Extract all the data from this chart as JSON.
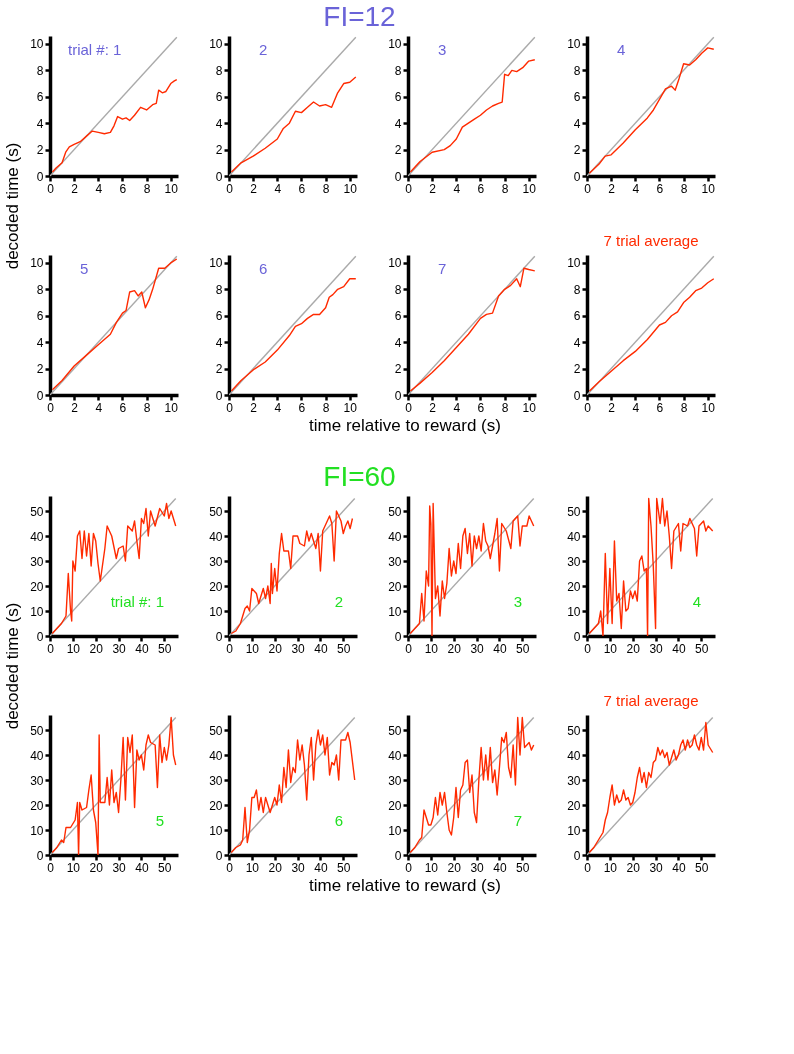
{
  "chart_data": [
    {
      "type": "other",
      "title": "FI=12",
      "xlabel": "time relative to reward (s)",
      "ylabel": "decoded time (s)"
    },
    {
      "type": "line",
      "annotations": [
        "trial #: 1"
      ],
      "xlim": [
        0,
        10.6
      ],
      "ylim": [
        0,
        10.6
      ],
      "xticks": [
        0,
        2,
        4,
        6,
        8,
        10
      ],
      "yticks": [
        0,
        2,
        4,
        6,
        8,
        10
      ],
      "grid": false,
      "series": [
        {
          "color": "#aaaaaa",
          "x": [
            0,
            10.5
          ],
          "values": [
            0,
            10.5
          ]
        },
        {
          "color": "#ff2a00",
          "x": [
            0.2,
            0.5,
            1,
            1.3,
            1.6,
            2,
            2.5,
            3,
            3.5,
            4,
            4.5,
            5,
            5.3,
            5.6,
            6,
            6.3,
            6.6,
            7,
            7.5,
            8,
            8.5,
            8.8,
            9,
            9.3,
            9.6,
            10,
            10.3,
            10.5
          ],
          "values": [
            0.3,
            0.6,
            1.0,
            1.8,
            2.2,
            2.4,
            2.6,
            3.0,
            3.4,
            3.3,
            3.2,
            3.3,
            3.8,
            4.5,
            4.3,
            4.4,
            4.2,
            4.6,
            5.2,
            5.0,
            5.4,
            5.5,
            6.5,
            6.3,
            6.4,
            7.0,
            7.2,
            7.3
          ]
        }
      ]
    },
    {
      "type": "line",
      "annotations": [
        "2"
      ],
      "xlim": [
        0,
        10.6
      ],
      "ylim": [
        0,
        10.6
      ],
      "xticks": [
        0,
        2,
        4,
        6,
        8,
        10
      ],
      "yticks": [
        0,
        2,
        4,
        6,
        8,
        10
      ],
      "grid": false,
      "series": [
        {
          "color": "#aaaaaa",
          "x": [
            0,
            10.5
          ],
          "values": [
            0,
            10.5
          ]
        },
        {
          "color": "#ff2a00",
          "x": [
            0.2,
            1,
            2,
            3,
            4,
            4.5,
            5,
            5.5,
            6,
            6.5,
            7,
            7.5,
            8,
            8.5,
            9,
            9.5,
            10,
            10.5
          ],
          "values": [
            0.3,
            1.0,
            1.5,
            2.1,
            2.8,
            3.6,
            4.0,
            4.9,
            4.8,
            5.2,
            5.6,
            5.3,
            5.4,
            5.2,
            6.3,
            7.0,
            7.1,
            7.5
          ]
        }
      ]
    },
    {
      "type": "line",
      "annotations": [
        "3"
      ],
      "xlim": [
        0,
        10.6
      ],
      "ylim": [
        0,
        10.6
      ],
      "xticks": [
        0,
        2,
        4,
        6,
        8,
        10
      ],
      "yticks": [
        0,
        2,
        4,
        6,
        8,
        10
      ],
      "grid": false,
      "series": [
        {
          "color": "#aaaaaa",
          "x": [
            0,
            10.5
          ],
          "values": [
            0,
            10.5
          ]
        },
        {
          "color": "#ff2a00",
          "x": [
            0.2,
            1,
            2,
            3,
            3.5,
            4,
            4.5,
            5,
            5.5,
            6,
            6.5,
            7,
            7.5,
            7.8,
            8,
            8.3,
            8.6,
            9,
            9.5,
            10,
            10.5
          ],
          "values": [
            0.3,
            1.1,
            1.8,
            2.0,
            2.3,
            2.8,
            3.7,
            4.0,
            4.3,
            4.6,
            5.0,
            5.3,
            5.5,
            5.6,
            7.7,
            7.6,
            8.0,
            7.9,
            8.2,
            8.7,
            8.8
          ]
        }
      ]
    },
    {
      "type": "line",
      "annotations": [
        "4"
      ],
      "xlim": [
        0,
        10.6
      ],
      "ylim": [
        0,
        10.6
      ],
      "xticks": [
        0,
        2,
        4,
        6,
        8,
        10
      ],
      "yticks": [
        0,
        2,
        4,
        6,
        8,
        10
      ],
      "grid": false,
      "series": [
        {
          "color": "#aaaaaa",
          "x": [
            0,
            10.5
          ],
          "values": [
            0,
            10.5
          ]
        },
        {
          "color": "#ff2a00",
          "x": [
            0.2,
            1,
            1.5,
            2,
            3,
            4,
            5,
            5.5,
            6,
            6.5,
            7,
            7.3,
            7.6,
            8,
            8.5,
            9,
            9.5,
            10,
            10.5
          ],
          "values": [
            0.2,
            0.9,
            1.5,
            1.6,
            2.5,
            3.5,
            4.4,
            5.0,
            5.8,
            6.6,
            6.8,
            6.5,
            7.3,
            8.5,
            8.4,
            8.8,
            9.3,
            9.7,
            9.6
          ]
        }
      ]
    },
    {
      "type": "line",
      "annotations": [
        "5"
      ],
      "xlim": [
        0,
        10.6
      ],
      "ylim": [
        0,
        10.6
      ],
      "xticks": [
        0,
        2,
        4,
        6,
        8,
        10
      ],
      "yticks": [
        0,
        2,
        4,
        6,
        8,
        10
      ],
      "grid": false,
      "series": [
        {
          "color": "#aaaaaa",
          "x": [
            0,
            10.5
          ],
          "values": [
            0,
            10.5
          ]
        },
        {
          "color": "#ff2a00",
          "x": [
            0.2,
            1,
            2,
            3,
            4,
            5,
            5.5,
            6,
            6.3,
            6.6,
            7,
            7.3,
            7.6,
            7.9,
            8.2,
            8.5,
            9,
            9.5,
            10,
            10.5
          ],
          "values": [
            0.4,
            1.1,
            2.2,
            3.0,
            3.8,
            4.6,
            5.5,
            6.2,
            6.4,
            7.8,
            7.9,
            7.5,
            7.8,
            6.6,
            7.2,
            8.0,
            9.6,
            9.6,
            10.0,
            10.3
          ]
        }
      ]
    },
    {
      "type": "line",
      "annotations": [
        "6"
      ],
      "xlim": [
        0,
        10.6
      ],
      "ylim": [
        0,
        10.6
      ],
      "xticks": [
        0,
        2,
        4,
        6,
        8,
        10
      ],
      "yticks": [
        0,
        2,
        4,
        6,
        8,
        10
      ],
      "grid": false,
      "series": [
        {
          "color": "#aaaaaa",
          "x": [
            0,
            10.5
          ],
          "values": [
            0,
            10.5
          ]
        },
        {
          "color": "#ff2a00",
          "x": [
            0.2,
            1,
            2,
            3,
            4,
            5,
            5.5,
            6,
            6.5,
            7,
            7.5,
            8,
            8.3,
            8.6,
            9,
            9.5,
            10,
            10.5
          ],
          "values": [
            0.3,
            1.1,
            1.9,
            2.5,
            3.4,
            4.5,
            5.2,
            5.4,
            5.8,
            6.1,
            6.1,
            6.6,
            7.4,
            7.6,
            8.0,
            8.2,
            8.8,
            8.8
          ]
        }
      ]
    },
    {
      "type": "line",
      "annotations": [
        "7"
      ],
      "xlim": [
        0,
        10.6
      ],
      "ylim": [
        0,
        10.6
      ],
      "xticks": [
        0,
        2,
        4,
        6,
        8,
        10
      ],
      "yticks": [
        0,
        2,
        4,
        6,
        8,
        10
      ],
      "grid": false,
      "series": [
        {
          "color": "#aaaaaa",
          "x": [
            0,
            10.5
          ],
          "values": [
            0,
            10.5
          ]
        },
        {
          "color": "#ff2a00",
          "x": [
            0.2,
            1,
            2,
            3,
            4,
            5,
            6,
            6.5,
            7,
            7.5,
            8,
            8.5,
            9,
            9.3,
            9.6,
            10,
            10.5
          ],
          "values": [
            0.3,
            0.9,
            1.7,
            2.6,
            3.6,
            4.6,
            5.8,
            6.1,
            6.2,
            7.5,
            8.0,
            8.3,
            8.8,
            8.2,
            9.6,
            9.5,
            9.4
          ]
        }
      ]
    },
    {
      "type": "line",
      "annotations": [
        "7 trial average"
      ],
      "xlim": [
        0,
        10.6
      ],
      "ylim": [
        0,
        10.6
      ],
      "xticks": [
        0,
        2,
        4,
        6,
        8,
        10
      ],
      "yticks": [
        0,
        2,
        4,
        6,
        8,
        10
      ],
      "grid": false,
      "series": [
        {
          "color": "#aaaaaa",
          "x": [
            0,
            10.5
          ],
          "values": [
            0,
            10.5
          ]
        },
        {
          "color": "#ff2a00",
          "x": [
            0.2,
            1,
            2,
            3,
            4,
            5,
            6,
            6.5,
            7,
            7.5,
            8,
            8.5,
            9,
            9.5,
            10,
            10.5
          ],
          "values": [
            0.3,
            1.0,
            1.8,
            2.6,
            3.3,
            4.2,
            5.3,
            5.5,
            6.0,
            6.3,
            7.0,
            7.4,
            7.9,
            8.1,
            8.5,
            8.8
          ]
        }
      ]
    },
    {
      "type": "other",
      "title": "FI=60",
      "xlabel": "time relative to reward (s)",
      "ylabel": "decoded time (s)"
    },
    {
      "type": "line",
      "annotations": [
        "trial #: 1"
      ],
      "xlim": [
        0,
        56
      ],
      "ylim": [
        0,
        56
      ],
      "xticks": [
        0,
        10,
        20,
        30,
        40,
        50
      ],
      "yticks": [
        0,
        10,
        20,
        30,
        40,
        50
      ],
      "grid": false,
      "series": [
        {
          "color": "#aaaaaa",
          "x": [
            0,
            55
          ],
          "values": [
            0,
            55
          ]
        },
        {
          "color": "#ff2a00",
          "x": [
            1,
            3,
            5,
            7,
            8,
            9,
            9.5,
            10,
            11,
            12,
            13,
            14,
            15,
            16,
            17,
            18,
            19,
            20,
            21,
            22,
            24,
            25,
            27,
            29,
            30,
            32,
            33,
            34,
            36,
            37,
            38,
            39,
            40,
            41,
            42,
            43,
            44,
            46,
            48,
            50,
            51,
            52,
            53,
            54,
            55
          ],
          "values": [
            1,
            3,
            5,
            8,
            25,
            10,
            6,
            30,
            26,
            40,
            42,
            31,
            42,
            32,
            41,
            28,
            41,
            38,
            29,
            22,
            35,
            44,
            40,
            31,
            35,
            36,
            30,
            44,
            42,
            46,
            38,
            31,
            47,
            45,
            51,
            40,
            50,
            44,
            51,
            48,
            53,
            47,
            50,
            47,
            44
          ]
        }
      ]
    },
    {
      "type": "line",
      "annotations": [
        "2"
      ],
      "xlim": [
        0,
        56
      ],
      "ylim": [
        0,
        56
      ],
      "xticks": [
        0,
        10,
        20,
        30,
        40,
        50
      ],
      "yticks": [
        0,
        10,
        20,
        30,
        40,
        50
      ],
      "grid": false,
      "series": [
        {
          "color": "#aaaaaa",
          "x": [
            0,
            55
          ],
          "values": [
            0,
            55
          ]
        },
        {
          "color": "#ff2a00",
          "x": [
            1,
            3,
            5,
            7,
            8,
            9,
            10,
            12,
            13,
            15,
            16,
            17,
            18,
            18.5,
            19,
            20,
            21,
            22,
            23,
            24,
            26,
            27,
            28,
            30,
            31,
            33,
            34,
            35,
            36,
            38,
            39,
            40,
            41,
            42,
            44,
            45,
            46,
            47,
            48,
            49,
            50,
            51,
            52,
            53,
            54
          ],
          "values": [
            1,
            2,
            5,
            11,
            12,
            10,
            19,
            17,
            13,
            19,
            15,
            20,
            13,
            29,
            17,
            27,
            18,
            33,
            41,
            34,
            34,
            27,
            40,
            40,
            37,
            36,
            42,
            38,
            41,
            35,
            41,
            26,
            42,
            44,
            48,
            45,
            30,
            50,
            48,
            46,
            41,
            44,
            46,
            43,
            47
          ]
        }
      ]
    },
    {
      "type": "line",
      "annotations": [
        "3"
      ],
      "xlim": [
        0,
        56
      ],
      "ylim": [
        0,
        56
      ],
      "xticks": [
        0,
        10,
        20,
        30,
        40,
        50
      ],
      "yticks": [
        0,
        10,
        20,
        30,
        40,
        50
      ],
      "grid": false,
      "series": [
        {
          "color": "#aaaaaa",
          "x": [
            0,
            55
          ],
          "values": [
            0,
            55
          ]
        },
        {
          "color": "#ff2a00",
          "x": [
            1,
            3,
            5,
            6,
            7,
            8,
            9,
            9.5,
            10,
            10.5,
            11,
            12,
            13,
            14,
            15,
            16,
            17,
            18,
            19,
            20,
            21,
            22,
            23,
            24,
            25,
            26,
            27,
            28,
            29,
            30,
            31,
            32,
            33,
            34,
            35,
            36,
            37,
            38,
            39,
            40,
            41,
            43,
            45,
            46,
            48,
            49,
            50,
            52,
            53,
            55
          ],
          "values": [
            1,
            3,
            5,
            17,
            6,
            26,
            20,
            52,
            45,
            0,
            53,
            15,
            20,
            8,
            22,
            15,
            21,
            35,
            24,
            30,
            25,
            37,
            27,
            40,
            43,
            33,
            41,
            28,
            40,
            35,
            40,
            34,
            45,
            38,
            36,
            31,
            36,
            41,
            47,
            26,
            45,
            42,
            35,
            46,
            48,
            36,
            44,
            44,
            48,
            44
          ]
        }
      ]
    },
    {
      "type": "line",
      "annotations": [
        "4"
      ],
      "xlim": [
        0,
        56
      ],
      "ylim": [
        0,
        56
      ],
      "xticks": [
        0,
        10,
        20,
        30,
        40,
        50
      ],
      "yticks": [
        0,
        10,
        20,
        30,
        40,
        50
      ],
      "grid": false,
      "series": [
        {
          "color": "#aaaaaa",
          "x": [
            0,
            55
          ],
          "values": [
            0,
            55
          ]
        },
        {
          "color": "#ff2a00",
          "x": [
            1,
            3,
            5,
            6,
            7,
            8,
            9,
            10,
            11,
            12,
            13,
            14,
            15,
            16,
            17,
            18,
            19,
            20,
            21,
            22,
            23,
            24,
            25,
            26,
            26.5,
            27,
            28,
            29,
            30,
            30.5,
            32,
            33,
            34,
            35,
            36,
            37,
            38,
            40,
            41,
            42,
            44,
            45,
            47,
            48,
            49,
            51,
            52,
            53,
            55
          ],
          "values": [
            1,
            3,
            5,
            10,
            0,
            33,
            5,
            27,
            5,
            38,
            14,
            17,
            3,
            22,
            10,
            11,
            18,
            15,
            18,
            14,
            30,
            32,
            26,
            27,
            0,
            55,
            44,
            28,
            3,
            55,
            45,
            55,
            44,
            50,
            40,
            27,
            42,
            45,
            34,
            45,
            44,
            47,
            43,
            32,
            44,
            46,
            42,
            44,
            42
          ]
        }
      ]
    },
    {
      "type": "line",
      "annotations": [
        "5"
      ],
      "xlim": [
        0,
        56
      ],
      "ylim": [
        0,
        56
      ],
      "xticks": [
        0,
        10,
        20,
        30,
        40,
        50
      ],
      "yticks": [
        0,
        10,
        20,
        30,
        40,
        50
      ],
      "grid": false,
      "series": [
        {
          "color": "#aaaaaa",
          "x": [
            0,
            55
          ],
          "values": [
            0,
            55
          ]
        },
        {
          "color": "#ff2a00",
          "x": [
            1,
            3,
            5,
            6,
            7,
            9,
            11,
            12,
            12.5,
            13,
            14,
            16,
            17,
            18,
            19,
            20,
            21,
            21.5,
            22,
            24,
            25,
            26,
            27,
            28,
            29,
            30,
            31,
            32,
            33,
            34,
            35,
            36,
            37,
            38,
            39,
            40,
            41,
            42,
            43,
            44,
            46,
            47,
            48,
            49,
            50,
            51,
            52,
            53,
            54,
            55
          ],
          "values": [
            1,
            3,
            6,
            5,
            11,
            11,
            14,
            21,
            0,
            21,
            18,
            19,
            26,
            32,
            18,
            13,
            0,
            48,
            21,
            21,
            31,
            20,
            34,
            21,
            25,
            17,
            30,
            47,
            22,
            47,
            41,
            48,
            19,
            42,
            38,
            40,
            34,
            44,
            48,
            45,
            44,
            27,
            48,
            37,
            43,
            38,
            44,
            55,
            40,
            36
          ]
        }
      ]
    },
    {
      "type": "line",
      "annotations": [
        "6"
      ],
      "xlim": [
        0,
        56
      ],
      "ylim": [
        0,
        56
      ],
      "xticks": [
        0,
        10,
        20,
        30,
        40,
        50
      ],
      "yticks": [
        0,
        10,
        20,
        30,
        40,
        50
      ],
      "grid": false,
      "series": [
        {
          "color": "#aaaaaa",
          "x": [
            0,
            55
          ],
          "values": [
            0,
            55
          ]
        },
        {
          "color": "#ff2a00",
          "x": [
            1,
            3,
            5,
            6,
            7,
            8,
            9,
            10,
            11,
            12,
            13,
            14,
            15,
            16,
            17,
            18,
            20,
            21,
            22,
            23,
            24,
            25,
            26,
            27,
            28,
            29,
            30,
            31,
            32,
            33,
            34,
            35,
            36,
            37,
            38,
            39,
            40,
            41,
            42,
            43,
            44,
            45,
            46,
            47,
            48,
            49,
            51,
            52,
            53,
            55
          ],
          "values": [
            1,
            3,
            4,
            6,
            19,
            5,
            10,
            23,
            23,
            26,
            18,
            23,
            17,
            23,
            20,
            17,
            23,
            20,
            28,
            21,
            35,
            27,
            42,
            29,
            35,
            33,
            46,
            38,
            44,
            36,
            22,
            40,
            47,
            30,
            44,
            50,
            44,
            48,
            40,
            47,
            32,
            37,
            36,
            40,
            30,
            46,
            46,
            49,
            45,
            30
          ]
        }
      ]
    },
    {
      "type": "line",
      "annotations": [
        "7"
      ],
      "xlim": [
        0,
        56
      ],
      "ylim": [
        0,
        56
      ],
      "xticks": [
        0,
        10,
        20,
        30,
        40,
        50
      ],
      "yticks": [
        0,
        10,
        20,
        30,
        40,
        50
      ],
      "grid": false,
      "series": [
        {
          "color": "#aaaaaa",
          "x": [
            0,
            55
          ],
          "values": [
            0,
            55
          ]
        },
        {
          "color": "#ff2a00",
          "x": [
            1,
            3,
            5,
            6,
            7,
            8,
            9,
            10,
            11,
            12,
            13,
            14,
            15,
            16,
            17,
            18,
            19,
            20,
            21,
            22,
            23,
            24,
            25,
            26,
            27,
            28,
            29,
            30,
            31,
            32,
            33,
            34,
            35,
            36,
            37,
            38,
            39,
            40,
            41,
            42,
            43,
            44,
            45,
            46,
            47,
            48,
            49,
            50,
            51,
            53,
            54,
            55
          ],
          "values": [
            1,
            3,
            6,
            7,
            18,
            15,
            12,
            12,
            15,
            23,
            16,
            25,
            20,
            25,
            17,
            10,
            8,
            15,
            27,
            15,
            26,
            28,
            37,
            38,
            25,
            32,
            17,
            13,
            30,
            43,
            30,
            40,
            30,
            43,
            29,
            34,
            24,
            35,
            47,
            45,
            49,
            35,
            31,
            44,
            28,
            55,
            40,
            55,
            43,
            45,
            42,
            44
          ]
        }
      ]
    },
    {
      "type": "line",
      "annotations": [
        "7 trial average"
      ],
      "xlim": [
        0,
        56
      ],
      "ylim": [
        0,
        56
      ],
      "xticks": [
        0,
        10,
        20,
        30,
        40,
        50
      ],
      "yticks": [
        0,
        10,
        20,
        30,
        40,
        50
      ],
      "grid": false,
      "series": [
        {
          "color": "#aaaaaa",
          "x": [
            0,
            55
          ],
          "values": [
            0,
            55
          ]
        },
        {
          "color": "#ff2a00",
          "x": [
            1,
            3,
            5,
            7,
            8,
            9,
            10,
            11,
            12,
            13,
            14,
            15,
            16,
            17,
            18,
            19,
            20,
            21,
            22,
            23,
            24,
            25,
            26,
            27,
            28,
            29,
            30,
            31,
            32,
            33,
            34,
            35,
            36,
            37,
            38,
            39,
            40,
            41,
            42,
            43,
            44,
            45,
            46,
            47,
            48,
            49,
            50,
            51,
            52,
            53,
            55
          ],
          "values": [
            1,
            3,
            6,
            9,
            14,
            17,
            23,
            28,
            20,
            24,
            21,
            22,
            26,
            22,
            23,
            20,
            21,
            25,
            31,
            35,
            29,
            33,
            27,
            33,
            31,
            37,
            38,
            43,
            40,
            42,
            39,
            41,
            36,
            39,
            42,
            38,
            40,
            44,
            46,
            42,
            46,
            43,
            44,
            48,
            44,
            42,
            47,
            42,
            53,
            44,
            41
          ]
        }
      ]
    }
  ]
}
